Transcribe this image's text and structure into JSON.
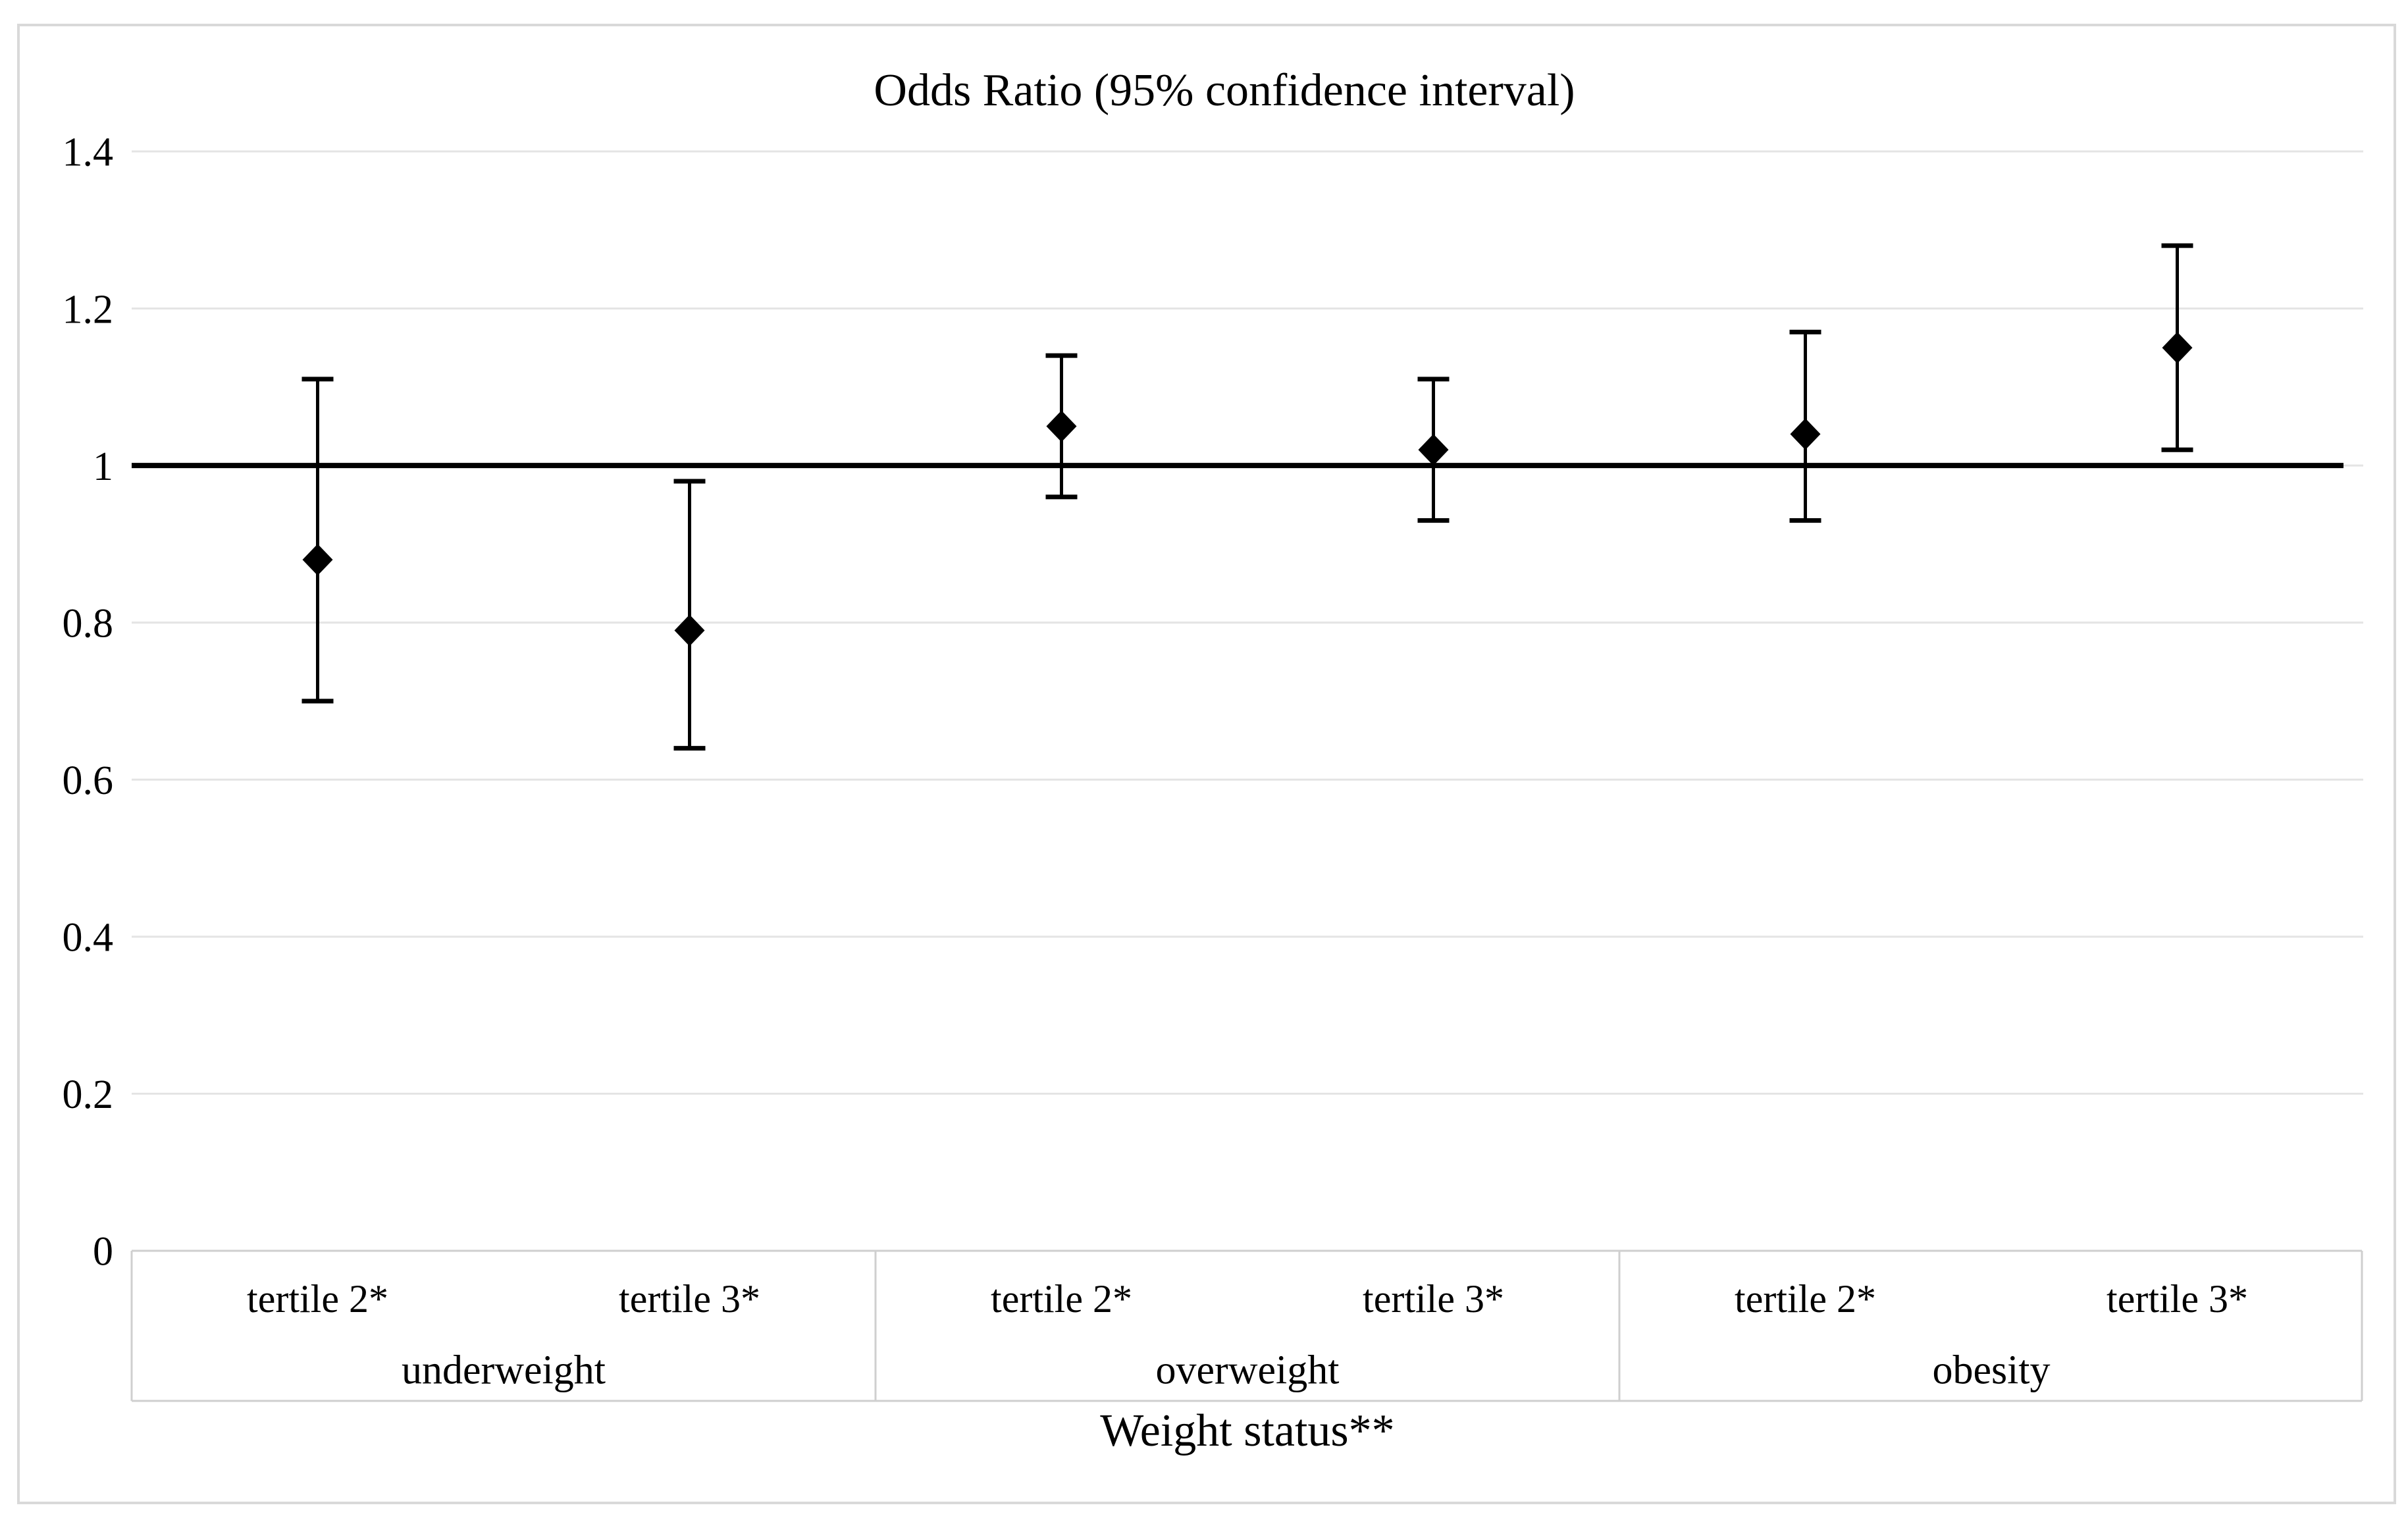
{
  "chart_data": {
    "type": "scatter",
    "subtype": "odds-ratio-forest-plot",
    "title": "Odds Ratio (95% confidence interval)",
    "xlabel": "Weight status**",
    "ylabel": "",
    "ylim": [
      0,
      1.4
    ],
    "yticks": [
      0,
      0.2,
      0.4,
      0.6,
      0.8,
      1,
      1.2,
      1.4
    ],
    "ytick_labels": [
      "0",
      "0.2",
      "0.4",
      "0.6",
      "0.8",
      "1",
      "1.2",
      "1.4"
    ],
    "grid": "horizontal-light",
    "legend": "none",
    "marker": "diamond",
    "reference_line_y": 1,
    "groups": [
      {
        "label": "underweight",
        "points": [
          {
            "label": "tertile 2*",
            "or": 0.88,
            "ci_low": 0.7,
            "ci_high": 1.11
          },
          {
            "label": "tertile 3*",
            "or": 0.79,
            "ci_low": 0.64,
            "ci_high": 0.98
          }
        ]
      },
      {
        "label": "overweight",
        "points": [
          {
            "label": "tertile 2*",
            "or": 1.05,
            "ci_low": 0.96,
            "ci_high": 1.14
          },
          {
            "label": "tertile 3*",
            "or": 1.02,
            "ci_low": 0.93,
            "ci_high": 1.11
          }
        ]
      },
      {
        "label": "obesity",
        "points": [
          {
            "label": "tertile 2*",
            "or": 1.04,
            "ci_low": 0.93,
            "ci_high": 1.17
          },
          {
            "label": "tertile 3*",
            "or": 1.15,
            "ci_low": 1.02,
            "ci_high": 1.28
          }
        ]
      }
    ],
    "colors": {
      "series": "#000000",
      "reference_line": "#000000",
      "gridline": "#e4e4e4",
      "band_border": "#cfcfcf",
      "figure_border": "#d9d9d9",
      "text": "#000000",
      "background": "#ffffff"
    }
  }
}
